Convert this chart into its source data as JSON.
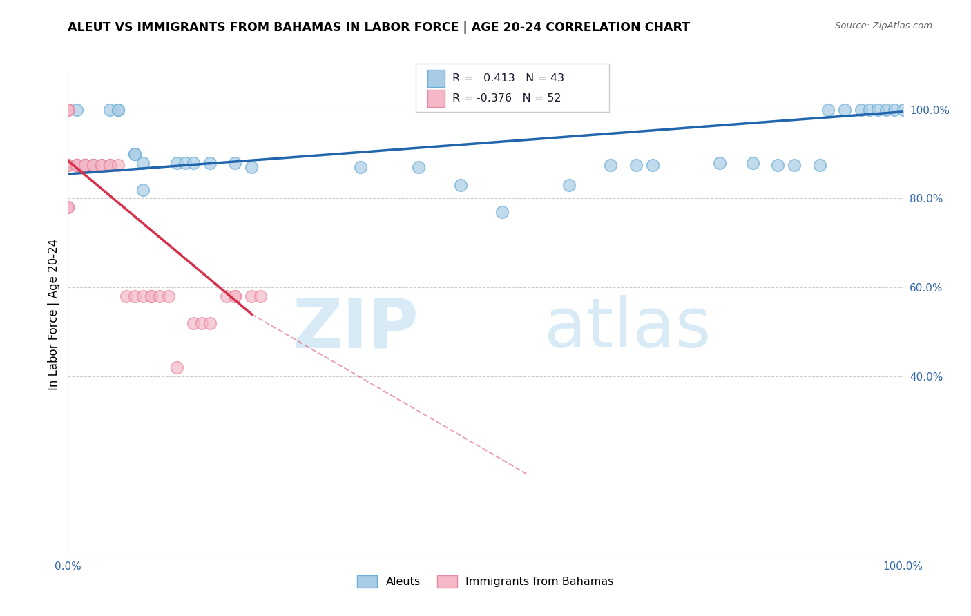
{
  "title": "ALEUT VS IMMIGRANTS FROM BAHAMAS IN LABOR FORCE | AGE 20-24 CORRELATION CHART",
  "source": "Source: ZipAtlas.com",
  "ylabel": "In Labor Force | Age 20-24",
  "xlim": [
    0.0,
    1.0
  ],
  "ylim": [
    0.0,
    1.08
  ],
  "yticks": [
    0.4,
    0.6,
    0.8,
    1.0
  ],
  "ytick_labels": [
    "40.0%",
    "60.0%",
    "80.0%",
    "100.0%"
  ],
  "xticks": [
    0.0,
    0.1,
    0.2,
    0.3,
    0.4,
    0.5,
    0.6,
    0.7,
    0.8,
    0.9,
    1.0
  ],
  "xtick_labels": [
    "0.0%",
    "",
    "",
    "",
    "",
    "",
    "",
    "",
    "",
    "",
    "100.0%"
  ],
  "legend_blue_label": "Aleuts",
  "legend_pink_label": "Immigrants from Bahamas",
  "R_blue": 0.413,
  "N_blue": 43,
  "R_pink": -0.376,
  "N_pink": 52,
  "blue_color": "#a8cce4",
  "blue_edge_color": "#6baed6",
  "pink_color": "#f4b8c8",
  "pink_edge_color": "#e88aa0",
  "trend_blue_color": "#2166ac",
  "trend_pink_color": "#d6304a",
  "watermark_zip": "ZIP",
  "watermark_atlas": "atlas",
  "watermark_color": "#d8eaf5",
  "blue_x": [
    0.0,
    0.0,
    0.0,
    0.01,
    0.01,
    0.02,
    0.02,
    0.03,
    0.03,
    0.05,
    0.06,
    0.06,
    0.08,
    0.08,
    0.09,
    0.09,
    0.13,
    0.14,
    0.15,
    0.17,
    0.2,
    0.22,
    0.35,
    0.42,
    0.47,
    0.52,
    0.6,
    0.65,
    0.68,
    0.7,
    0.78,
    0.82,
    0.85,
    0.87,
    0.9,
    0.91,
    0.93,
    0.95,
    0.96,
    0.97,
    0.98,
    0.99,
    1.0
  ],
  "blue_y": [
    0.875,
    0.875,
    1.0,
    1.0,
    0.875,
    0.875,
    0.875,
    0.875,
    0.875,
    1.0,
    1.0,
    1.0,
    0.9,
    0.9,
    0.88,
    0.82,
    0.88,
    0.88,
    0.88,
    0.88,
    0.88,
    0.87,
    0.87,
    0.87,
    0.83,
    0.77,
    0.83,
    0.875,
    0.875,
    0.875,
    0.88,
    0.88,
    0.875,
    0.875,
    0.875,
    1.0,
    1.0,
    1.0,
    1.0,
    1.0,
    1.0,
    1.0,
    1.0
  ],
  "pink_x": [
    0.0,
    0.0,
    0.0,
    0.0,
    0.0,
    0.0,
    0.0,
    0.0,
    0.0,
    0.0,
    0.0,
    0.0,
    0.0,
    0.0,
    0.0,
    0.0,
    0.0,
    0.01,
    0.01,
    0.01,
    0.01,
    0.01,
    0.01,
    0.01,
    0.02,
    0.02,
    0.02,
    0.02,
    0.03,
    0.03,
    0.04,
    0.04,
    0.05,
    0.05,
    0.05,
    0.06,
    0.07,
    0.08,
    0.09,
    0.1,
    0.1,
    0.11,
    0.12,
    0.13,
    0.15,
    0.16,
    0.17,
    0.19,
    0.2,
    0.2,
    0.22,
    0.23
  ],
  "pink_y": [
    1.0,
    1.0,
    1.0,
    1.0,
    1.0,
    1.0,
    0.875,
    0.875,
    0.875,
    0.875,
    0.875,
    0.875,
    0.875,
    0.875,
    0.78,
    0.78,
    0.78,
    0.875,
    0.875,
    0.875,
    0.875,
    0.875,
    0.875,
    0.875,
    0.875,
    0.875,
    0.875,
    0.875,
    0.875,
    0.875,
    0.875,
    0.875,
    0.875,
    0.875,
    0.875,
    0.875,
    0.58,
    0.58,
    0.58,
    0.58,
    0.58,
    0.58,
    0.58,
    0.42,
    0.52,
    0.52,
    0.52,
    0.58,
    0.58,
    0.58,
    0.58,
    0.58
  ],
  "trend_blue_x0": 0.0,
  "trend_blue_x1": 1.0,
  "trend_blue_y0": 0.855,
  "trend_blue_y1": 0.995,
  "trend_pink_x0": 0.0,
  "trend_pink_x1": 0.22,
  "trend_pink_y0": 0.885,
  "trend_pink_y1": 0.54,
  "trend_pink_dash_x1": 0.55,
  "trend_pink_dash_y1": 0.18
}
